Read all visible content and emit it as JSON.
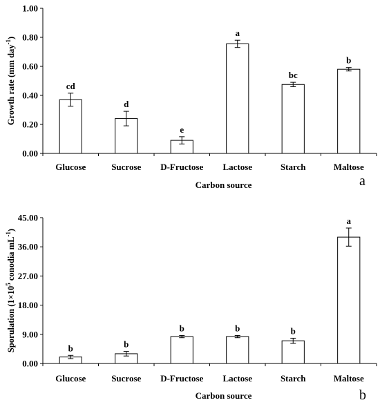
{
  "chart_data": [
    {
      "type": "bar",
      "panel_label": "a",
      "categories": [
        "Glucose",
        "Sucrose",
        "D-Fructose",
        "Lactose",
        "Starch",
        "Maltose"
      ],
      "values": [
        0.37,
        0.24,
        0.09,
        0.755,
        0.475,
        0.58
      ],
      "errors": [
        0.045,
        0.05,
        0.025,
        0.025,
        0.015,
        0.012
      ],
      "significance": [
        "cd",
        "d",
        "e",
        "a",
        "bc",
        "b"
      ],
      "xlabel": "Carbon source",
      "ylabel_main": "Growth rate (mm day",
      "ylabel_sup": "-1",
      "ylabel_end": ")",
      "ylim": [
        0,
        1.0
      ],
      "yticks": [
        "0.00",
        "0.20",
        "0.40",
        "0.60",
        "0.80",
        "1.00"
      ],
      "ytick_values": [
        0,
        0.2,
        0.4,
        0.6,
        0.8,
        1.0
      ],
      "grid": false
    },
    {
      "type": "bar",
      "panel_label": "b",
      "categories": [
        "Glucose",
        "Sucrose",
        "D-Fructose",
        "Lactose",
        "Starch",
        "Maltose"
      ],
      "values": [
        2.0,
        3.0,
        8.3,
        8.3,
        7.0,
        39.0
      ],
      "errors": [
        0.5,
        0.7,
        0.35,
        0.35,
        0.8,
        2.8
      ],
      "significance": [
        "b",
        "b",
        "b",
        "b",
        "b",
        "a"
      ],
      "xlabel": "Carbon source",
      "ylabel_main": "Sporulation (1×10",
      "ylabel_sup": "5",
      "ylabel_end": " conodia mL",
      "ylabel_sup2": "-1",
      "ylabel_close": ")",
      "ylim": [
        0,
        45
      ],
      "yticks": [
        "0.00",
        "9.00",
        "18.00",
        "27.00",
        "36.00",
        "45.00"
      ],
      "ytick_values": [
        0,
        9,
        18,
        27,
        36,
        45
      ],
      "grid": false
    }
  ]
}
